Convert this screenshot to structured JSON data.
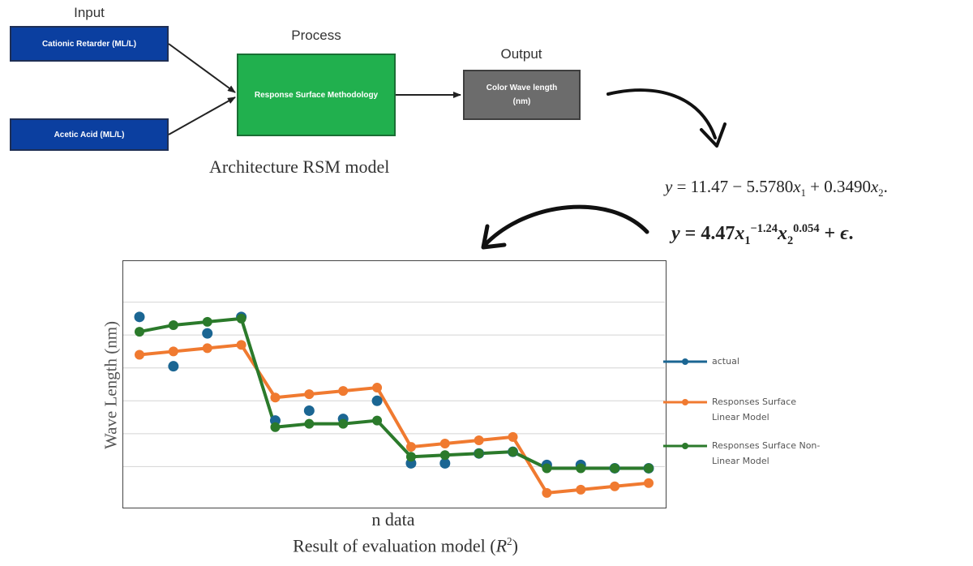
{
  "architecture": {
    "stages": {
      "input": "Input",
      "process": "Process",
      "output": "Output"
    },
    "input_boxes": [
      "Cationic Retarder (ML/L)",
      "Acetic Acid (ML/L)"
    ],
    "process_box": "Response Surface Methodology",
    "output_box": {
      "line1": "Color Wave length",
      "line2": "(nm)"
    },
    "caption": "Architecture RSM model",
    "colors": {
      "input": "#0b3fa0",
      "process": "#21b04e",
      "output": "#6c6c6c"
    }
  },
  "equations": {
    "linear": {
      "lhs": "y",
      "const": "11.47",
      "coef1": "5.5780",
      "coef2": "0.3490"
    },
    "nonlinear": {
      "lhs": "y",
      "coef": "4.47",
      "exp1": "−1.24",
      "exp2": "0.054",
      "error": "ϵ"
    }
  },
  "chart": {
    "xlabel": "n data",
    "ylabel": "Wave Length (nm)",
    "caption": "Result of evaluation model",
    "caption_symbol": "R",
    "caption_power": "2"
  },
  "chart_data": {
    "type": "line",
    "x": [
      1,
      2,
      3,
      4,
      5,
      6,
      7,
      8,
      9,
      10,
      11,
      12,
      13,
      14,
      15,
      16
    ],
    "ylim": [
      0,
      7
    ],
    "grid": true,
    "legend_position": "right",
    "series": [
      {
        "name": "actual",
        "color": "#1b6693",
        "style": "points",
        "values": [
          5.55,
          4.05,
          5.05,
          5.55,
          2.4,
          2.7,
          2.45,
          3.0,
          1.1,
          1.1,
          1.4,
          1.45,
          1.05,
          1.05,
          0.95,
          0.95
        ]
      },
      {
        "name": "Responses Surface Linear Model",
        "color": "#f07a30",
        "style": "line",
        "values": [
          4.4,
          4.5,
          4.6,
          4.7,
          3.1,
          3.2,
          3.3,
          3.4,
          1.6,
          1.7,
          1.8,
          1.9,
          0.2,
          0.3,
          0.4,
          0.5
        ]
      },
      {
        "name": "Responses Surface Non-Linear Model",
        "color": "#2b7a2b",
        "style": "line",
        "values": [
          5.1,
          5.3,
          5.4,
          5.5,
          2.2,
          2.3,
          2.3,
          2.4,
          1.3,
          1.35,
          1.4,
          1.45,
          0.95,
          0.95,
          0.95,
          0.95
        ]
      }
    ]
  }
}
